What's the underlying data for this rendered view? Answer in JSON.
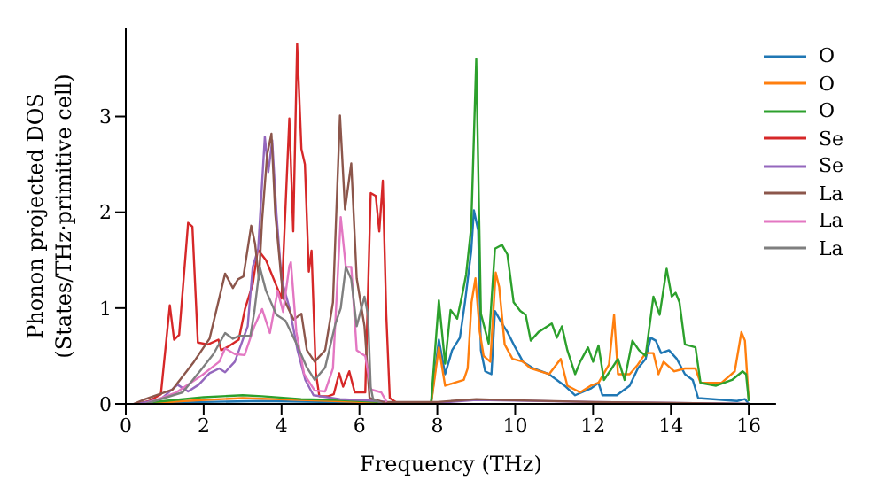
{
  "chart_data": {
    "type": "line",
    "xlabel": "Frequency (THz)",
    "ylabel": "Phonon projected DOS\n(States/THz·primitive cell)",
    "xlim": [
      0,
      16.7
    ],
    "ylim": [
      0,
      3.92
    ],
    "xticks": [
      0,
      2,
      4,
      6,
      8,
      10,
      12,
      14,
      16
    ],
    "yticks": [
      0,
      1,
      2,
      3
    ],
    "grid": false,
    "legend": "top right",
    "marker": "none",
    "line_style": "solid",
    "series": [
      {
        "name": "O",
        "color": "#1f77b4",
        "x": [
          0.4,
          2,
          3.5,
          5,
          7,
          7.84,
          8.04,
          8.2,
          8.38,
          8.58,
          8.71,
          8.87,
          8.94,
          9.05,
          9.12,
          9.23,
          9.39,
          9.48,
          9.66,
          9.8,
          10.0,
          10.2,
          10.47,
          10.87,
          11.07,
          11.27,
          11.54,
          11.94,
          12.14,
          12.24,
          12.61,
          12.94,
          13.15,
          13.35,
          13.48,
          13.61,
          13.75,
          13.95,
          14.15,
          14.36,
          14.56,
          14.7,
          15.7,
          15.9,
          16.0
        ],
        "values": [
          0,
          0.02,
          0.03,
          0.02,
          0,
          0,
          0.67,
          0.31,
          0.56,
          0.69,
          1.06,
          1.59,
          2.02,
          1.81,
          0.56,
          0.34,
          0.31,
          0.97,
          0.84,
          0.75,
          0.59,
          0.44,
          0.37,
          0.31,
          0.25,
          0.19,
          0.09,
          0.16,
          0.22,
          0.09,
          0.09,
          0.19,
          0.37,
          0.47,
          0.69,
          0.66,
          0.53,
          0.56,
          0.47,
          0.31,
          0.25,
          0.06,
          0.03,
          0.05,
          0
        ]
      },
      {
        "name": "O",
        "color": "#ff7f0e",
        "x": [
          0.4,
          1.5,
          3,
          4.5,
          6,
          7,
          7.84,
          8.04,
          8.2,
          8.44,
          8.68,
          8.78,
          8.88,
          8.98,
          9.09,
          9.19,
          9.36,
          9.5,
          9.59,
          9.73,
          9.93,
          10.2,
          10.4,
          10.87,
          11.17,
          11.34,
          11.67,
          11.94,
          12.14,
          12.41,
          12.54,
          12.64,
          12.94,
          13.15,
          13.35,
          13.55,
          13.68,
          13.81,
          14.08,
          14.36,
          14.63,
          14.76,
          15.3,
          15.64,
          15.81,
          15.9,
          16.0
        ],
        "values": [
          0,
          0.03,
          0.06,
          0.04,
          0.02,
          0,
          0,
          0.59,
          0.19,
          0.22,
          0.25,
          0.37,
          1.06,
          1.31,
          0.75,
          0.5,
          0.44,
          1.37,
          1.22,
          0.62,
          0.47,
          0.44,
          0.37,
          0.31,
          0.47,
          0.19,
          0.12,
          0.19,
          0.22,
          0.41,
          0.93,
          0.31,
          0.31,
          0.41,
          0.53,
          0.53,
          0.31,
          0.44,
          0.34,
          0.37,
          0.37,
          0.22,
          0.22,
          0.34,
          0.75,
          0.66,
          0.03
        ]
      },
      {
        "name": "O",
        "color": "#2ca02c",
        "x": [
          0.4,
          1,
          2,
          3,
          3.5,
          4.5,
          5.5,
          6.5,
          7.0,
          7.84,
          8.04,
          8.2,
          8.34,
          8.51,
          8.65,
          8.74,
          8.87,
          9.0,
          9.12,
          9.32,
          9.48,
          9.66,
          9.8,
          9.96,
          10.13,
          10.27,
          10.4,
          10.6,
          10.94,
          11.07,
          11.2,
          11.34,
          11.54,
          11.67,
          11.87,
          12.0,
          12.14,
          12.28,
          12.48,
          12.64,
          12.81,
          13.01,
          13.18,
          13.35,
          13.55,
          13.71,
          13.89,
          14.02,
          14.12,
          14.22,
          14.36,
          14.63,
          14.76,
          15.16,
          15.57,
          15.84,
          15.93,
          16.0
        ],
        "values": [
          0.01,
          0.03,
          0.07,
          0.09,
          0.08,
          0.05,
          0.04,
          0.02,
          0,
          0.01,
          1.08,
          0.42,
          0.98,
          0.89,
          1.16,
          1.35,
          1.84,
          3.6,
          0.94,
          0.63,
          1.62,
          1.66,
          1.56,
          1.06,
          0.97,
          0.93,
          0.66,
          0.75,
          0.84,
          0.69,
          0.81,
          0.56,
          0.31,
          0.44,
          0.59,
          0.44,
          0.61,
          0.25,
          0.37,
          0.47,
          0.25,
          0.66,
          0.56,
          0.5,
          1.12,
          0.93,
          1.41,
          1.12,
          1.16,
          1.06,
          0.62,
          0.59,
          0.22,
          0.19,
          0.25,
          0.34,
          0.31,
          0.03
        ]
      },
      {
        "name": "Se",
        "color": "#d62728",
        "x": [
          0.3,
          0.6,
          0.9,
          1.13,
          1.24,
          1.37,
          1.6,
          1.71,
          1.85,
          2.11,
          2.38,
          2.45,
          2.64,
          2.9,
          3.06,
          3.26,
          3.39,
          3.6,
          3.8,
          4.0,
          4.2,
          4.3,
          4.4,
          4.51,
          4.6,
          4.7,
          4.77,
          4.88,
          4.97,
          5.2,
          5.34,
          5.48,
          5.58,
          5.74,
          5.88,
          6.15,
          6.29,
          6.42,
          6.51,
          6.6,
          6.69,
          6.78,
          7.0
        ],
        "values": [
          0,
          0.03,
          0.1,
          1.03,
          0.67,
          0.72,
          1.89,
          1.85,
          0.64,
          0.62,
          0.67,
          0.56,
          0.6,
          0.67,
          0.99,
          1.25,
          1.61,
          1.5,
          1.3,
          1.1,
          2.98,
          1.8,
          3.76,
          2.66,
          2.5,
          1.38,
          1.6,
          0.33,
          0.08,
          0.08,
          0.1,
          0.32,
          0.18,
          0.34,
          0.12,
          0.12,
          2.2,
          2.17,
          1.8,
          2.33,
          0.93,
          0.06,
          0
        ]
      },
      {
        "name": "Se",
        "color": "#9467bd",
        "x": [
          0.3,
          0.9,
          1.33,
          1.6,
          1.87,
          2.15,
          2.4,
          2.55,
          2.8,
          3.13,
          3.26,
          3.4,
          3.57,
          3.66,
          3.76,
          3.87,
          4.0,
          4.21,
          4.41,
          4.61,
          4.82,
          5.5,
          6.5,
          7.0,
          8.0,
          9.0,
          12.0,
          16.0
        ],
        "values": [
          0,
          0.05,
          0.2,
          0.13,
          0.2,
          0.32,
          0.37,
          0.33,
          0.44,
          0.81,
          1.43,
          1.62,
          2.79,
          2.42,
          2.75,
          1.98,
          1.3,
          0.99,
          0.56,
          0.25,
          0.09,
          0.05,
          0.03,
          0,
          0.01,
          0.04,
          0.02,
          0
        ]
      },
      {
        "name": "La",
        "color": "#8c564b",
        "x": [
          0.2,
          0.5,
          1.2,
          1.75,
          2.15,
          2.55,
          2.75,
          2.88,
          3.02,
          3.22,
          3.32,
          3.42,
          3.5,
          3.63,
          3.74,
          3.84,
          4.04,
          4.31,
          4.51,
          4.65,
          4.85,
          5.12,
          5.32,
          5.5,
          5.63,
          5.79,
          5.93,
          6.13,
          6.26,
          6.6,
          8.0,
          9.0,
          9.7,
          12.0,
          16.0
        ],
        "values": [
          0,
          0.05,
          0.15,
          0.44,
          0.68,
          1.36,
          1.21,
          1.3,
          1.33,
          1.86,
          1.67,
          1.3,
          1.92,
          2.6,
          2.82,
          1.98,
          1.11,
          0.88,
          0.94,
          0.56,
          0.44,
          0.56,
          1.06,
          3.01,
          2.03,
          2.51,
          1.31,
          0.81,
          0.06,
          0.02,
          0.02,
          0.05,
          0.04,
          0.02,
          0
        ]
      },
      {
        "name": "La",
        "color": "#e377c2",
        "x": [
          0.5,
          1.3,
          1.96,
          2.4,
          2.55,
          2.8,
          3.05,
          3.3,
          3.5,
          3.7,
          3.9,
          4.04,
          4.2,
          4.24,
          4.38,
          4.58,
          4.85,
          5.12,
          5.32,
          5.52,
          5.65,
          5.79,
          5.93,
          6.15,
          6.29,
          6.56,
          6.7
        ],
        "values": [
          0,
          0.12,
          0.3,
          0.44,
          0.58,
          0.52,
          0.51,
          0.81,
          0.99,
          0.74,
          1.18,
          0.96,
          1.44,
          1.48,
          0.75,
          0.31,
          0.14,
          0.13,
          0.37,
          1.95,
          1.43,
          1.43,
          0.56,
          0.5,
          0.15,
          0.12,
          0.02
        ]
      },
      {
        "name": "La",
        "color": "#7f7f7f",
        "x": [
          0.5,
          1.46,
          1.96,
          2.25,
          2.55,
          2.75,
          2.92,
          3.2,
          3.3,
          3.44,
          3.6,
          3.87,
          4.1,
          4.38,
          4.65,
          4.85,
          5.12,
          5.38,
          5.52,
          5.65,
          5.79,
          5.93,
          6.13,
          6.22,
          6.29,
          6.35,
          6.6
        ],
        "values": [
          0,
          0.12,
          0.37,
          0.52,
          0.74,
          0.68,
          0.71,
          0.71,
          0.96,
          1.43,
          1.18,
          0.93,
          0.87,
          0.63,
          0.38,
          0.25,
          0.38,
          0.83,
          1.0,
          1.43,
          1.3,
          0.81,
          1.12,
          0.93,
          0.17,
          0.05,
          0
        ]
      }
    ]
  }
}
